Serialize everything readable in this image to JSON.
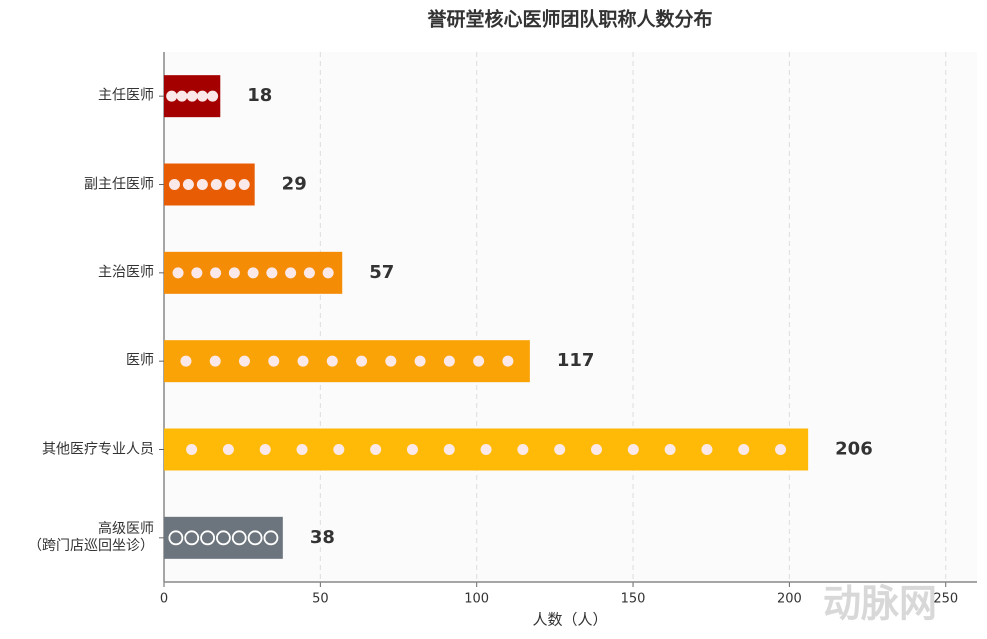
{
  "chart_data": {
    "type": "barh",
    "title": "誉研堂核心医师团队职称人数分布",
    "xlabel": "人数（人）",
    "categories": [
      "主任医师",
      "副主任医师",
      "主治医师",
      "医师",
      "其他医疗专业人员",
      "高级医师\n（跨门店巡回坐诊）"
    ],
    "values": [
      18,
      29,
      57,
      117,
      206,
      38
    ],
    "colors": [
      "#a40000",
      "#e85d04",
      "#f48c06",
      "#faa307",
      "#ffba08",
      "#6c757d"
    ],
    "dot_styles": [
      "filled",
      "filled",
      "filled",
      "filled",
      "filled",
      "hollow"
    ],
    "xlim": [
      0,
      260
    ],
    "xticks": [
      0,
      50,
      100,
      150,
      200,
      250
    ],
    "grid": true,
    "watermark": "动脉网"
  }
}
